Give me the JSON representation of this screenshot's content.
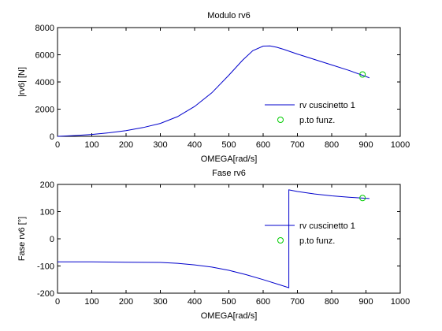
{
  "chart_data": [
    {
      "type": "line",
      "title": "Modulo rv6",
      "xlabel": "OMEGA[rad/s]",
      "ylabel": "|rv6| [N]",
      "xlim": [
        0,
        1000
      ],
      "ylim": [
        0,
        8000
      ],
      "xticks": [
        0,
        100,
        200,
        300,
        400,
        500,
        600,
        700,
        800,
        900,
        1000
      ],
      "yticks": [
        0,
        2000,
        4000,
        6000,
        8000
      ],
      "tick_labels_x": [
        "0",
        "100",
        "200",
        "300",
        "400",
        "500",
        "600",
        "700",
        "800",
        "900",
        "1000"
      ],
      "tick_labels_y": [
        "0",
        "2000",
        "4000",
        "6000",
        "8000"
      ],
      "grid": false,
      "legend_position": "right",
      "series": [
        {
          "name": "rv cuscinetto 1",
          "kind": "line",
          "color": "#0000cc",
          "x": [
            0,
            50,
            100,
            150,
            200,
            250,
            300,
            350,
            400,
            450,
            500,
            540,
            570,
            600,
            620,
            640,
            660,
            700,
            750,
            800,
            850,
            900,
            910
          ],
          "y": [
            0,
            60,
            140,
            260,
            420,
            650,
            950,
            1450,
            2200,
            3200,
            4500,
            5600,
            6300,
            6640,
            6650,
            6550,
            6400,
            6050,
            5650,
            5250,
            4850,
            4400,
            4300
          ]
        },
        {
          "name": "p.to funz.",
          "kind": "marker",
          "color": "#00cc00",
          "x": [
            890
          ],
          "y": [
            4550
          ]
        }
      ]
    },
    {
      "type": "line",
      "title": "Fase rv6",
      "xlabel": "OMEGA[rad/s]",
      "ylabel": "Fase rv6 [°]",
      "xlim": [
        0,
        1000
      ],
      "ylim": [
        -200,
        200
      ],
      "xticks": [
        0,
        100,
        200,
        300,
        400,
        500,
        600,
        700,
        800,
        900,
        1000
      ],
      "yticks": [
        -200,
        -100,
        0,
        100,
        200
      ],
      "tick_labels_x": [
        "0",
        "100",
        "200",
        "300",
        "400",
        "500",
        "600",
        "700",
        "800",
        "900",
        "1000"
      ],
      "tick_labels_y": [
        "-200",
        "-100",
        "0",
        "100",
        "200"
      ],
      "grid": false,
      "legend_position": "right",
      "series": [
        {
          "name": "rv cuscinetto 1",
          "kind": "line",
          "color": "#0000cc",
          "x": [
            0,
            100,
            200,
            300,
            350,
            400,
            450,
            500,
            550,
            600,
            650,
            675,
            675,
            700,
            750,
            800,
            850,
            900,
            910
          ],
          "y": [
            -85,
            -85,
            -86,
            -87,
            -90,
            -96,
            -104,
            -116,
            -132,
            -150,
            -170,
            -180,
            180,
            174,
            165,
            158,
            153,
            149,
            148
          ]
        },
        {
          "name": "p.to funz.",
          "kind": "marker",
          "color": "#00cc00",
          "x": [
            890
          ],
          "y": [
            150
          ]
        }
      ]
    }
  ]
}
